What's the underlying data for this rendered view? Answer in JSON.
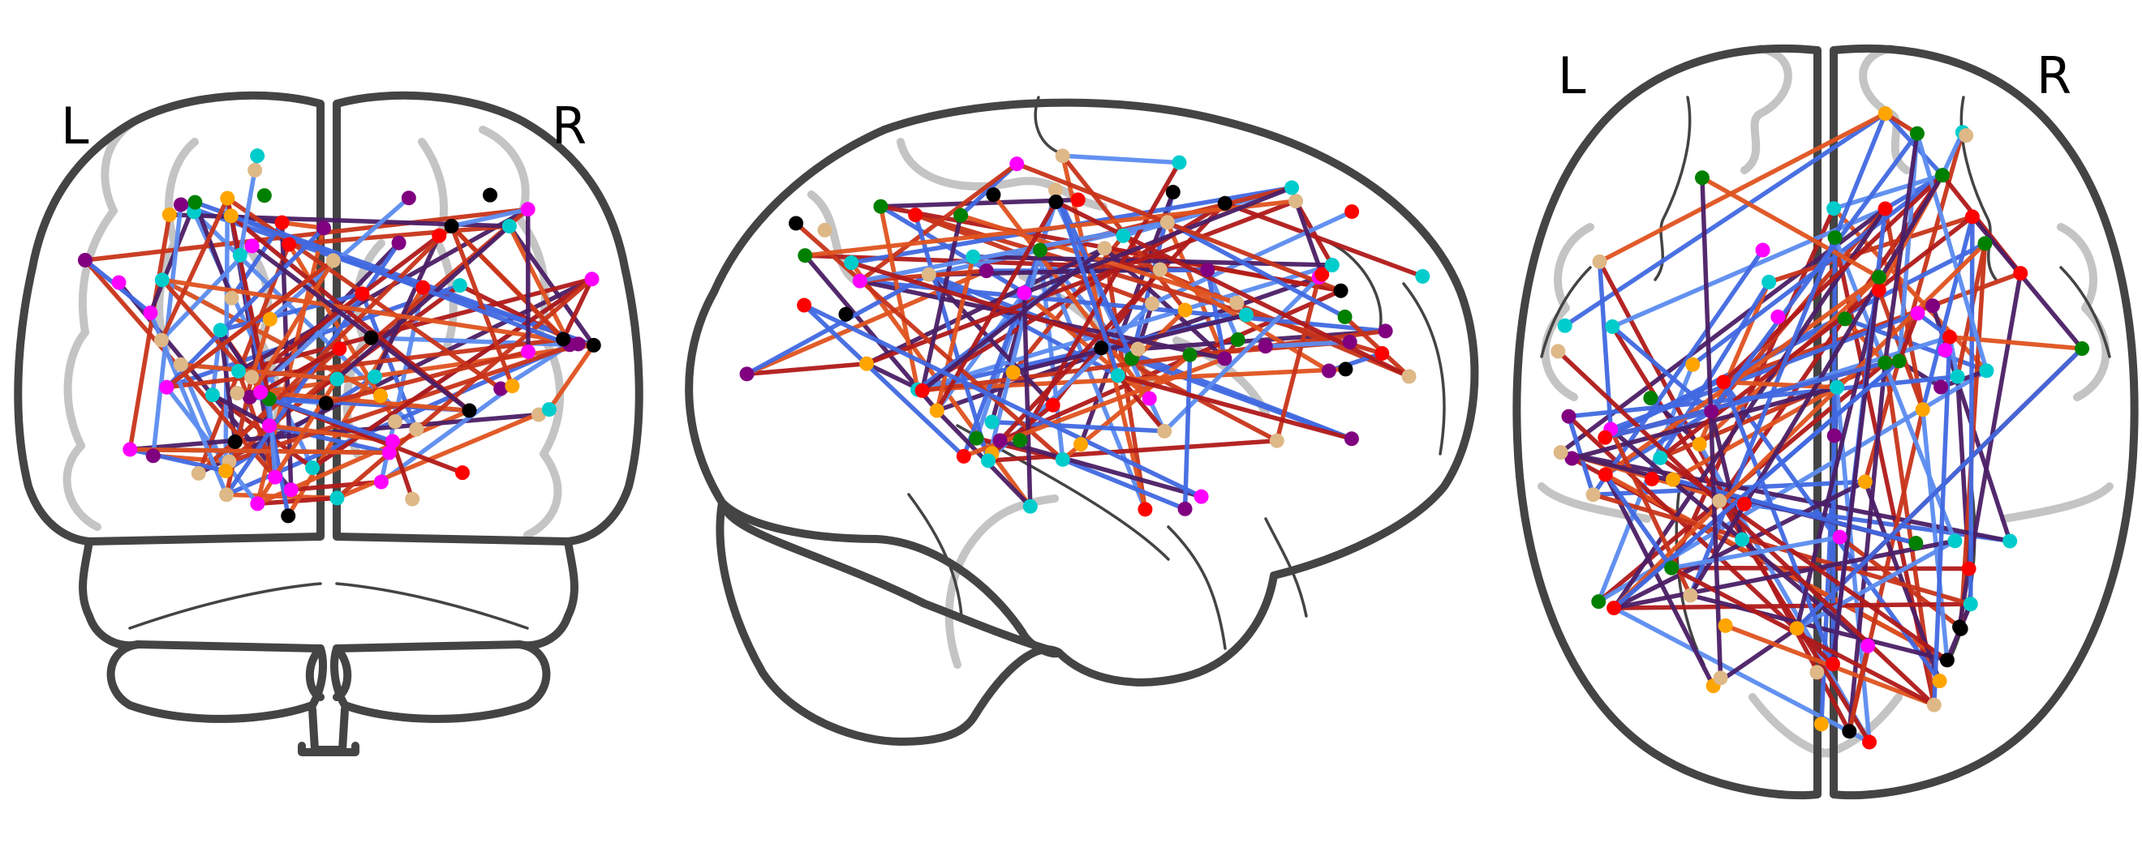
{
  "labels": {
    "coronal_left": "L",
    "coronal_right": "R",
    "axial_left": "L",
    "axial_right": "R"
  },
  "colors": {
    "edge_palette": [
      "#4169e1",
      "#5b8cf0",
      "#e0531f",
      "#c8341a",
      "#b01a1a",
      "#4b1e66"
    ],
    "node_palette": [
      "#ff0000",
      "#ffa500",
      "#008000",
      "#800080",
      "#00cccc",
      "#ff00ff",
      "#000000",
      "#deb887"
    ]
  }
}
